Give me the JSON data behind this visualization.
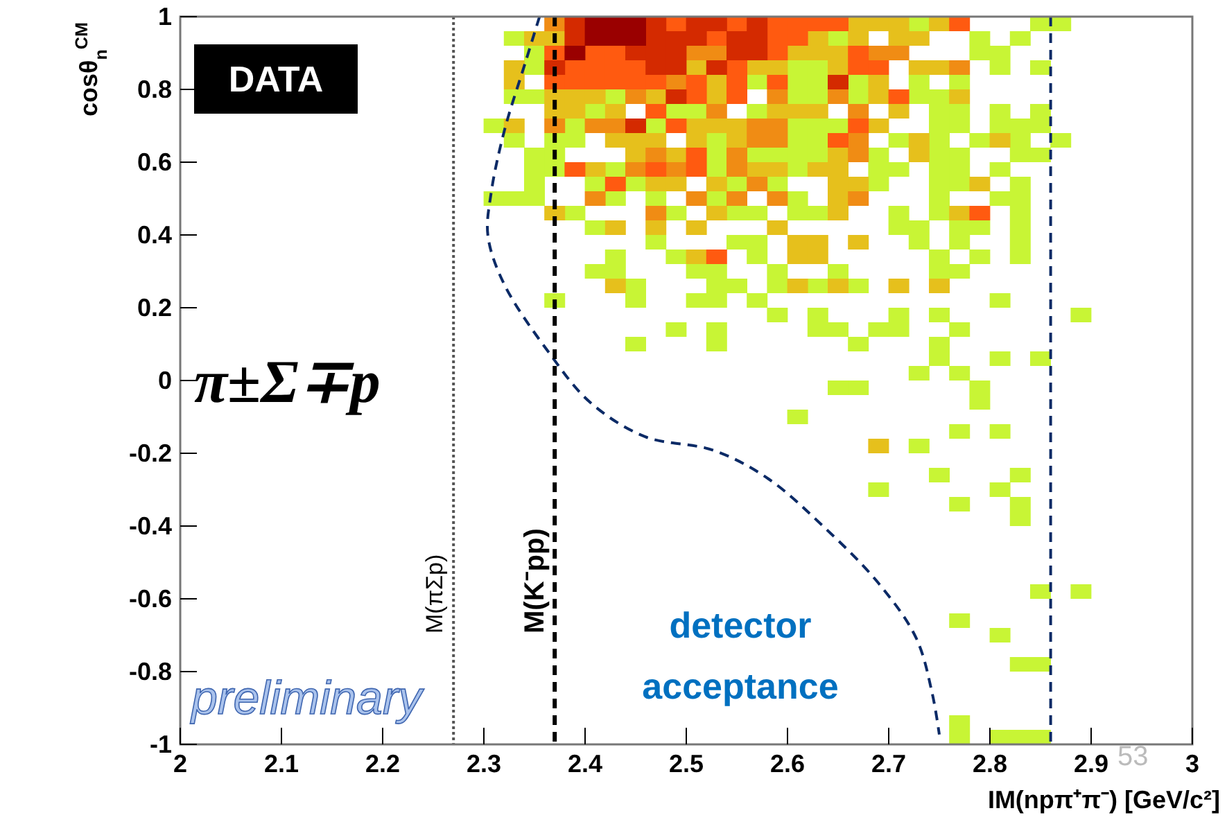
{
  "chart_data": {
    "type": "scatter",
    "marker": "square",
    "xlabel": "IM(npπ⁺π⁻) [GeV/c²]",
    "ylabel": "cosθ$_{n}$$^{CM}$",
    "xlim": [
      2,
      3
    ],
    "ylim": [
      -1,
      1
    ],
    "xticks": [
      2,
      2.1,
      2.2,
      2.3,
      2.4,
      2.5,
      2.6,
      2.7,
      2.8,
      2.9,
      3
    ],
    "yticks": [
      -1,
      -0.8,
      -0.6,
      -0.4,
      -0.2,
      0,
      0.2,
      0.4,
      0.6,
      0.8,
      1
    ],
    "series": [
      {
        "color": "#c8f535",
        "x": [
          2.73,
          2.85,
          2.87,
          2.33,
          2.65,
          2.79,
          2.83,
          2.35,
          2.79,
          2.81,
          2.35,
          2.61,
          2.63,
          2.81,
          2.85,
          2.57,
          2.61,
          2.63,
          2.67,
          2.73,
          2.77,
          2.33,
          2.35,
          2.43,
          2.61,
          2.63,
          2.67,
          2.73,
          2.75,
          2.41,
          2.49,
          2.51,
          2.57,
          2.75,
          2.77,
          2.81,
          2.85,
          2.31,
          2.39,
          2.47,
          2.61,
          2.63,
          2.65,
          2.75,
          2.77,
          2.81,
          2.83,
          2.85,
          2.33,
          2.37,
          2.39,
          2.53,
          2.61,
          2.63,
          2.71,
          2.75,
          2.79,
          2.83,
          2.87,
          2.35,
          2.37,
          2.53,
          2.57,
          2.59,
          2.61,
          2.63,
          2.69,
          2.75,
          2.77,
          2.83,
          2.85,
          2.35,
          2.37,
          2.43,
          2.53,
          2.61,
          2.69,
          2.71,
          2.75,
          2.77,
          2.81,
          2.35,
          2.41,
          2.45,
          2.55,
          2.59,
          2.69,
          2.75,
          2.77,
          2.83,
          2.31,
          2.33,
          2.35,
          2.43,
          2.47,
          2.53,
          2.61,
          2.75,
          2.81,
          2.83,
          2.39,
          2.49,
          2.55,
          2.57,
          2.61,
          2.63,
          2.71,
          2.75,
          2.83,
          2.41,
          2.71,
          2.73,
          2.77,
          2.79,
          2.83,
          2.47,
          2.55,
          2.57,
          2.73,
          2.77,
          2.83,
          2.43,
          2.49,
          2.57,
          2.75,
          2.79,
          2.83,
          2.41,
          2.43,
          2.51,
          2.53,
          2.59,
          2.65,
          2.75,
          2.77,
          2.45,
          2.53,
          2.55,
          2.59,
          2.63,
          2.67,
          2.37,
          2.45,
          2.51,
          2.53,
          2.57,
          2.81,
          2.59,
          2.63,
          2.71,
          2.75,
          2.89,
          2.49,
          2.53,
          2.63,
          2.65,
          2.69,
          2.71,
          2.77,
          2.45,
          2.53,
          2.67,
          2.75,
          2.75,
          2.81,
          2.85,
          2.73,
          2.77,
          2.65,
          2.67,
          2.79,
          2.79,
          2.61,
          2.77,
          2.81,
          2.73,
          2.75,
          2.83,
          2.69,
          2.81,
          2.77,
          2.83,
          2.83,
          2.85,
          2.89,
          2.77,
          2.81,
          2.83,
          2.85,
          2.77,
          2.77,
          2.81,
          2.83,
          2.85
        ],
        "values": [
          0.98,
          0.98,
          0.98,
          0.94,
          0.94,
          0.94,
          0.94,
          0.9,
          0.9,
          0.9,
          0.86,
          0.86,
          0.86,
          0.86,
          0.86,
          0.82,
          0.82,
          0.82,
          0.82,
          0.82,
          0.82,
          0.78,
          0.78,
          0.78,
          0.78,
          0.78,
          0.78,
          0.78,
          0.78,
          0.74,
          0.74,
          0.74,
          0.74,
          0.74,
          0.74,
          0.74,
          0.74,
          0.7,
          0.7,
          0.7,
          0.7,
          0.7,
          0.7,
          0.7,
          0.7,
          0.7,
          0.7,
          0.7,
          0.66,
          0.66,
          0.66,
          0.66,
          0.66,
          0.66,
          0.66,
          0.66,
          0.66,
          0.66,
          0.66,
          0.62,
          0.62,
          0.62,
          0.62,
          0.62,
          0.62,
          0.62,
          0.62,
          0.62,
          0.62,
          0.62,
          0.62,
          0.58,
          0.58,
          0.58,
          0.58,
          0.58,
          0.58,
          0.58,
          0.58,
          0.58,
          0.58,
          0.54,
          0.54,
          0.54,
          0.54,
          0.54,
          0.54,
          0.54,
          0.54,
          0.54,
          0.5,
          0.5,
          0.5,
          0.5,
          0.5,
          0.5,
          0.5,
          0.5,
          0.5,
          0.5,
          0.46,
          0.46,
          0.46,
          0.46,
          0.46,
          0.46,
          0.46,
          0.46,
          0.46,
          0.42,
          0.42,
          0.42,
          0.42,
          0.42,
          0.42,
          0.38,
          0.38,
          0.38,
          0.38,
          0.38,
          0.38,
          0.34,
          0.34,
          0.34,
          0.34,
          0.34,
          0.34,
          0.3,
          0.3,
          0.3,
          0.3,
          0.3,
          0.3,
          0.3,
          0.3,
          0.26,
          0.26,
          0.26,
          0.26,
          0.26,
          0.26,
          0.22,
          0.22,
          0.22,
          0.22,
          0.22,
          0.22,
          0.18,
          0.18,
          0.18,
          0.18,
          0.18,
          0.14,
          0.14,
          0.14,
          0.14,
          0.14,
          0.14,
          0.14,
          0.1,
          0.1,
          0.1,
          0.1,
          0.06,
          0.06,
          0.06,
          0.02,
          0.02,
          -0.02,
          -0.02,
          -0.02,
          -0.06,
          -0.1,
          -0.14,
          -0.14,
          -0.18,
          -0.26,
          -0.26,
          -0.3,
          -0.3,
          -0.34,
          -0.34,
          -0.38,
          -0.58,
          -0.58,
          -0.66,
          -0.7,
          -0.78,
          -0.78,
          -0.94,
          -0.98,
          -0.98,
          -0.98,
          -0.98
        ]
      },
      {
        "color": "#e6c01c",
        "x": [
          2.67,
          2.69,
          2.71,
          2.75,
          2.35,
          2.37,
          2.63,
          2.67,
          2.71,
          2.73,
          2.61,
          2.63,
          2.65,
          2.33,
          2.51,
          2.57,
          2.59,
          2.65,
          2.73,
          2.75,
          2.33,
          2.53,
          2.69,
          2.37,
          2.39,
          2.41,
          2.47,
          2.53,
          2.69,
          2.77,
          2.37,
          2.39,
          2.43,
          2.59,
          2.61,
          2.63,
          2.71,
          2.33,
          2.51,
          2.53,
          2.55,
          2.69,
          2.43,
          2.45,
          2.47,
          2.51,
          2.55,
          2.73,
          2.81,
          2.45,
          2.49,
          2.65,
          2.73,
          2.41,
          2.57,
          2.59,
          2.63,
          2.65,
          2.47,
          2.49,
          2.53,
          2.65,
          2.67,
          2.79,
          2.65,
          2.37,
          2.53,
          2.65,
          2.77,
          2.43,
          2.47,
          2.51,
          2.59,
          2.61,
          2.63,
          2.67,
          2.51,
          2.61,
          2.63,
          2.43,
          2.61,
          2.65,
          2.71,
          2.75,
          2.69
        ],
        "values": [
          0.98,
          0.98,
          0.98,
          0.98,
          0.94,
          0.94,
          0.94,
          0.94,
          0.94,
          0.94,
          0.9,
          0.9,
          0.9,
          0.86,
          0.86,
          0.86,
          0.86,
          0.86,
          0.86,
          0.86,
          0.82,
          0.82,
          0.82,
          0.78,
          0.78,
          0.78,
          0.78,
          0.78,
          0.78,
          0.78,
          0.74,
          0.74,
          0.74,
          0.74,
          0.74,
          0.74,
          0.74,
          0.7,
          0.7,
          0.7,
          0.7,
          0.7,
          0.66,
          0.66,
          0.66,
          0.66,
          0.66,
          0.66,
          0.66,
          0.62,
          0.62,
          0.62,
          0.62,
          0.58,
          0.58,
          0.58,
          0.58,
          0.58,
          0.54,
          0.54,
          0.54,
          0.54,
          0.54,
          0.54,
          0.5,
          0.46,
          0.46,
          0.46,
          0.46,
          0.42,
          0.42,
          0.42,
          0.42,
          0.38,
          0.38,
          0.38,
          0.34,
          0.34,
          0.34,
          0.26,
          0.26,
          0.26,
          0.26,
          0.26,
          -0.18
        ]
      },
      {
        "color": "#f08c14",
        "x": [
          2.37,
          2.51,
          2.53,
          2.69,
          2.71,
          2.77,
          2.49,
          2.45,
          2.59,
          2.65,
          2.53,
          2.67,
          2.37,
          2.41,
          2.43,
          2.57,
          2.59,
          2.57,
          2.59,
          2.67,
          2.47,
          2.55,
          2.67,
          2.45,
          2.49,
          2.55,
          2.57,
          2.41,
          2.51,
          2.55,
          2.59,
          2.67,
          2.47
        ],
        "values": [
          0.98,
          0.9,
          0.9,
          0.9,
          0.9,
          0.86,
          0.82,
          0.78,
          0.78,
          0.78,
          0.74,
          0.74,
          0.7,
          0.7,
          0.7,
          0.7,
          0.7,
          0.66,
          0.66,
          0.66,
          0.62,
          0.62,
          0.62,
          0.58,
          0.58,
          0.58,
          0.54,
          0.5,
          0.5,
          0.5,
          0.5,
          0.5,
          0.46
        ]
      },
      {
        "color": "#ff5a10",
        "x": [
          2.49,
          2.55,
          2.59,
          2.61,
          2.63,
          2.65,
          2.77,
          2.53,
          2.59,
          2.61,
          2.37,
          2.41,
          2.43,
          2.59,
          2.67,
          2.39,
          2.41,
          2.43,
          2.45,
          2.55,
          2.67,
          2.69,
          2.37,
          2.39,
          2.41,
          2.43,
          2.45,
          2.47,
          2.51,
          2.55,
          2.59,
          2.51,
          2.55,
          2.71,
          2.47,
          2.49,
          2.67,
          2.65,
          2.51,
          2.39,
          2.47,
          2.51,
          2.43,
          2.79,
          2.53
        ],
        "values": [
          0.98,
          0.98,
          0.98,
          0.98,
          0.98,
          0.98,
          0.98,
          0.94,
          0.94,
          0.94,
          0.9,
          0.9,
          0.9,
          0.9,
          0.9,
          0.86,
          0.86,
          0.86,
          0.86,
          0.86,
          0.86,
          0.86,
          0.82,
          0.82,
          0.82,
          0.82,
          0.82,
          0.82,
          0.82,
          0.82,
          0.82,
          0.78,
          0.78,
          0.78,
          0.74,
          0.7,
          0.7,
          0.66,
          0.62,
          0.58,
          0.58,
          0.58,
          0.54,
          0.46,
          0.34
        ]
      },
      {
        "color": "#d42a00",
        "x": [
          2.39,
          2.47,
          2.51,
          2.53,
          2.57,
          2.39,
          2.47,
          2.49,
          2.51,
          2.55,
          2.57,
          2.45,
          2.47,
          2.49,
          2.55,
          2.57,
          2.37,
          2.47,
          2.49,
          2.53,
          2.65,
          2.49,
          2.45
        ],
        "values": [
          0.98,
          0.98,
          0.98,
          0.98,
          0.98,
          0.94,
          0.94,
          0.94,
          0.94,
          0.94,
          0.94,
          0.9,
          0.9,
          0.9,
          0.9,
          0.9,
          0.86,
          0.86,
          0.86,
          0.86,
          0.82,
          0.78,
          0.7
        ]
      },
      {
        "color": "#9a0000",
        "x": [
          2.41,
          2.43,
          2.45,
          2.41,
          2.43,
          2.45,
          2.39
        ],
        "values": [
          0.98,
          0.98,
          0.98,
          0.94,
          0.94,
          0.94,
          0.9
        ]
      },
      {
        "type": "line",
        "color": "#0b2a66",
        "line_style": "dashed",
        "marker": "none",
        "x": [
          2.355,
          2.341,
          2.32,
          2.307,
          2.304,
          2.32,
          2.365,
          2.405,
          2.459,
          2.527,
          2.581,
          2.635,
          2.689,
          2.727,
          2.743,
          2.75
        ],
        "values": [
          1,
          0.874,
          0.684,
          0.512,
          0.398,
          0.265,
          0.074,
          -0.06,
          -0.154,
          -0.192,
          -0.27,
          -0.4,
          -0.554,
          -0.707,
          -0.86,
          -0.973
        ]
      }
    ],
    "ref_lines": [
      {
        "axis": "x",
        "value": 2.27,
        "label": "M(πΣp)",
        "color": "#555555",
        "line_style": "dotted"
      },
      {
        "axis": "x",
        "value": 2.37,
        "label": "M(K⁻pp)",
        "color": "#000000",
        "line_style": "dashed"
      },
      {
        "axis": "x",
        "value": 2.86,
        "color": "#0b2a66",
        "line_style": "dashed"
      }
    ],
    "annotations": [
      "DATA",
      "π±Σ∓p",
      "detector acceptance",
      "preliminary",
      "53"
    ]
  }
}
